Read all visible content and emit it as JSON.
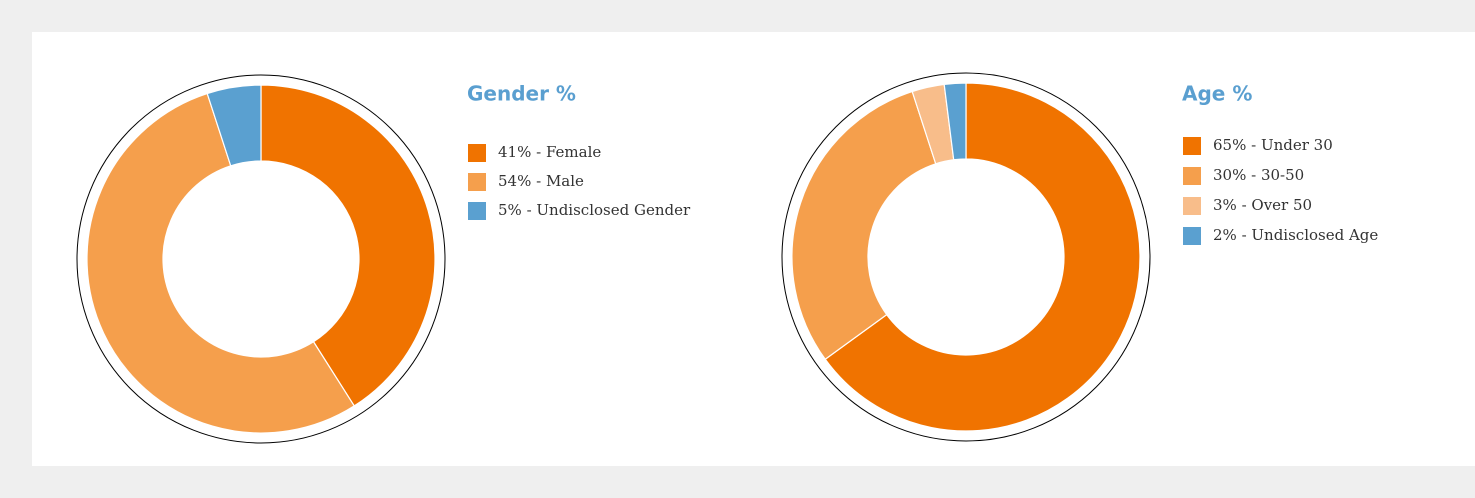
{
  "chart_data": [
    {
      "type": "donut",
      "title": "Gender %",
      "categories": [
        "41% - Female",
        "54% - Male",
        "5% - Undisclosed Gender"
      ],
      "values": [
        41,
        54,
        5
      ],
      "colors": [
        "#f07300",
        "#f59f4c",
        "#5aa0d0"
      ]
    },
    {
      "type": "donut",
      "title": "Age %",
      "categories": [
        "65% - Under 30",
        "30% - 30-50",
        "3% - Over 50",
        "2% - Undisclosed Age"
      ],
      "values": [
        65,
        30,
        3,
        2
      ],
      "colors": [
        "#f07300",
        "#f59f4c",
        "#f8bd8a",
        "#5aa0d0"
      ]
    }
  ]
}
